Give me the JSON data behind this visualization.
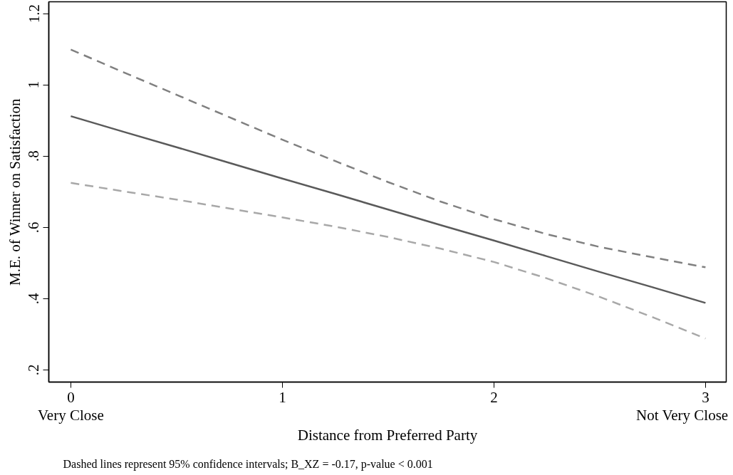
{
  "chart_data": {
    "type": "line",
    "xlabel": "Distance from Preferred Party",
    "ylabel": "M.E. of Winner on Satisfaction",
    "xlim": [
      -0.104,
      3.098
    ],
    "ylim": [
      0.166,
      1.233
    ],
    "xticks": [
      0,
      1,
      2,
      3
    ],
    "yticks": [
      {
        "value": 0.2,
        "label": ".2"
      },
      {
        "value": 0.4,
        "label": ".4"
      },
      {
        "value": 0.6,
        "label": ".6"
      },
      {
        "value": 0.8,
        "label": ".8"
      },
      1,
      {
        "value": 1.2,
        "label": "1.2"
      }
    ],
    "grid": false,
    "x": [
      0,
      0.25,
      0.5,
      0.75,
      1,
      1.25,
      1.5,
      1.75,
      2,
      2.25,
      2.5,
      2.75,
      3
    ],
    "series": [
      {
        "color": "#5a5a5a",
        "line_style": "solid",
        "values": [
          0.912,
          0.868,
          0.825,
          0.781,
          0.737,
          0.694,
          0.65,
          0.606,
          0.563,
          0.519,
          0.475,
          0.432,
          0.388
        ]
      },
      {
        "color": "#808080",
        "line_style": "dashed",
        "values": [
          1.099,
          1.035,
          0.972,
          0.909,
          0.846,
          0.786,
          0.727,
          0.672,
          0.623,
          0.581,
          0.545,
          0.516,
          0.488
        ]
      },
      {
        "color": "#a8a8a8",
        "line_style": "dashed",
        "values": [
          0.725,
          0.701,
          0.678,
          0.653,
          0.628,
          0.602,
          0.573,
          0.54,
          0.503,
          0.457,
          0.405,
          0.348,
          0.288
        ]
      }
    ],
    "annotations": [
      "Very Close",
      "Not Very Close",
      "Dashed lines represent 95% confidence intervals; B_XZ = -0.17, p-value < 0.001"
    ]
  }
}
